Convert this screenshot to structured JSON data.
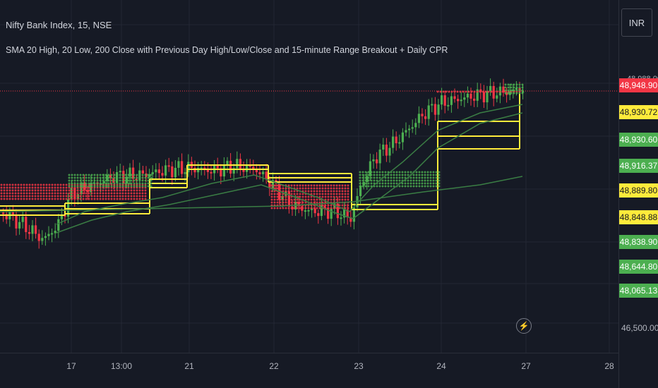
{
  "header": {
    "title": "Nifty Bank Index, 15, NSE",
    "indicator": "SMA 20 High, 20 Low, 200 Close with Previous Day High/Low/Close and 15-minute Range Breakout + Daily CPR"
  },
  "currency_button": {
    "label": "INR"
  },
  "price_axis": {
    "top_partial": "48,988.00",
    "bottom_tick": "46,500.00"
  },
  "price_labels": [
    {
      "text": "48,948.90",
      "bg": "#f23645",
      "fg": "#ffffff"
    },
    {
      "text": "48,930.72",
      "bg": "#ffeb3b",
      "fg": "#131722"
    },
    {
      "text": "48,930.60",
      "bg": "#4caf50",
      "fg": "#ffffff"
    },
    {
      "text": "48,916.37",
      "bg": "#4caf50",
      "fg": "#ffffff"
    },
    {
      "text": "48,889.80",
      "bg": "#ffeb3b",
      "fg": "#131722"
    },
    {
      "text": "48,848.88",
      "bg": "#ffeb3b",
      "fg": "#131722"
    },
    {
      "text": "48,838.90",
      "bg": "#4caf50",
      "fg": "#ffffff"
    },
    {
      "text": "48,644.80",
      "bg": "#4caf50",
      "fg": "#ffffff"
    },
    {
      "text": "48,065.13",
      "bg": "#4caf50",
      "fg": "#ffffff"
    }
  ],
  "time_axis": [
    "17",
    "13:00",
    "21",
    "22",
    "23",
    "24",
    "27",
    "28"
  ],
  "icons": {
    "flash": "lightning-icon"
  },
  "colors": {
    "background": "#161a25",
    "up": "#4caf50",
    "down": "#f23645",
    "cpr": "#ffeb3b",
    "sma": "#3a7d44"
  }
}
